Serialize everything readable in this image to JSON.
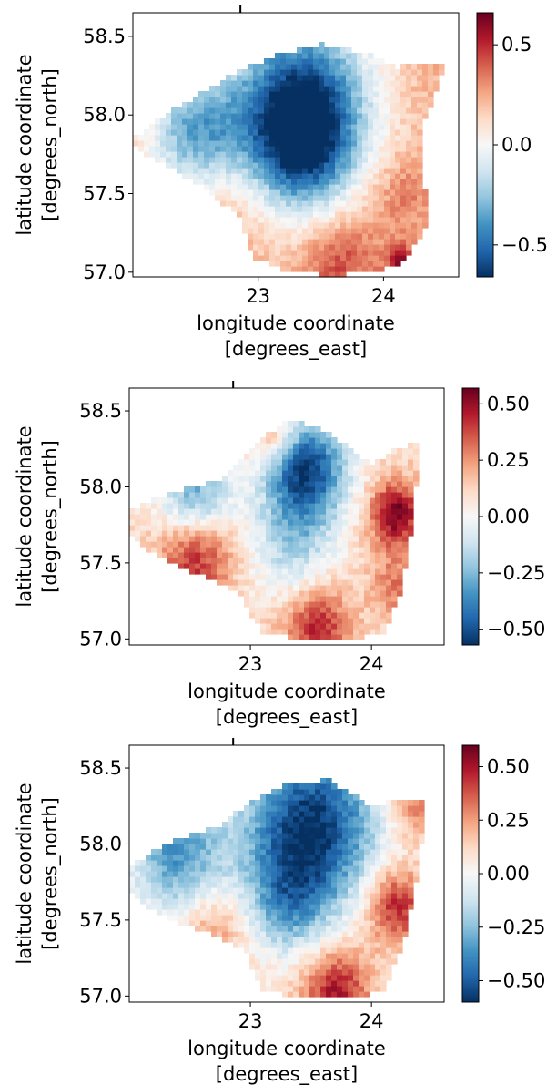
{
  "chart_data": [
    {
      "type": "heatmap",
      "title": "",
      "xlabel": "longitude coordinate\n[degrees_east]",
      "ylabel": "latitude coordinate\n[degrees_north]",
      "xlim": [
        22.0,
        24.6
      ],
      "ylim": [
        56.97,
        58.65
      ],
      "xticks": [
        23,
        24
      ],
      "yticks": [
        57.0,
        57.5,
        58.0,
        58.5
      ],
      "xtick_labels": [
        "23",
        "24"
      ],
      "ytick_labels": [
        "57.0",
        "57.5",
        "58.0",
        "58.5"
      ],
      "colorbar": {
        "cmap": "RdBu_r",
        "range": [
          -0.66,
          0.66
        ],
        "ticks": [
          -0.5,
          0.0,
          0.5
        ],
        "tick_labels": [
          "−0.5",
          "0.0",
          "0.5"
        ]
      },
      "grid": false,
      "outline": [
        [
          22.0,
          57.85
        ],
        [
          22.35,
          58.05
        ],
        [
          22.85,
          58.28
        ],
        [
          23.15,
          58.38
        ],
        [
          23.5,
          58.45
        ],
        [
          23.85,
          58.4
        ],
        [
          24.1,
          58.3
        ],
        [
          24.3,
          58.33
        ],
        [
          24.5,
          58.33
        ],
        [
          24.3,
          57.9
        ],
        [
          24.35,
          57.3
        ],
        [
          24.15,
          57.05
        ],
        [
          23.9,
          57.0
        ],
        [
          23.6,
          56.98
        ],
        [
          23.25,
          57.0
        ],
        [
          22.95,
          57.1
        ],
        [
          22.85,
          57.35
        ],
        [
          22.55,
          57.55
        ],
        [
          22.1,
          57.75
        ],
        [
          22.0,
          57.82
        ]
      ],
      "field": {
        "base": 0.22,
        "hotspots": [
          {
            "lon": 23.35,
            "lat": 58.07,
            "value": -0.62,
            "radius": 0.55
          },
          {
            "lon": 22.5,
            "lat": 57.9,
            "value": -0.3,
            "radius": 0.4
          },
          {
            "lon": 23.35,
            "lat": 57.75,
            "value": -0.2,
            "radius": 0.4
          },
          {
            "lon": 24.15,
            "lat": 57.5,
            "value": 0.35,
            "radius": 0.25
          },
          {
            "lon": 23.65,
            "lat": 57.08,
            "value": 0.45,
            "radius": 0.3
          },
          {
            "lon": 22.8,
            "lat": 57.48,
            "value": 0.3,
            "radius": 0.3
          },
          {
            "lon": 24.3,
            "lat": 58.2,
            "value": 0.25,
            "radius": 0.2
          },
          {
            "lon": 24.15,
            "lat": 57.05,
            "value": 0.6,
            "radius": 0.12
          }
        ]
      }
    },
    {
      "type": "heatmap",
      "title": "",
      "xlabel": "longitude coordinate\n[degrees_east]",
      "ylabel": "latitude coordinate\n[degrees_north]",
      "xlim": [
        22.0,
        24.6
      ],
      "ylim": [
        56.96,
        58.65
      ],
      "xticks": [
        23,
        24
      ],
      "yticks": [
        57.0,
        57.5,
        58.0,
        58.5
      ],
      "xtick_labels": [
        "23",
        "24"
      ],
      "ytick_labels": [
        "57.0",
        "57.5",
        "58.0",
        "58.5"
      ],
      "colorbar": {
        "cmap": "RdBu_r",
        "range": [
          -0.57,
          0.57
        ],
        "ticks": [
          -0.5,
          -0.25,
          0.0,
          0.25,
          0.5
        ],
        "tick_labels": [
          "−0.50",
          "−0.25",
          "0.00",
          "0.25",
          "0.50"
        ]
      },
      "grid": false,
      "outline": [
        [
          22.0,
          57.85
        ],
        [
          22.3,
          57.95
        ],
        [
          22.75,
          58.05
        ],
        [
          23.05,
          58.3
        ],
        [
          23.35,
          58.45
        ],
        [
          23.65,
          58.35
        ],
        [
          24.0,
          58.15
        ],
        [
          24.2,
          58.25
        ],
        [
          24.4,
          58.3
        ],
        [
          24.35,
          57.85
        ],
        [
          24.25,
          57.3
        ],
        [
          24.1,
          57.05
        ],
        [
          23.8,
          56.98
        ],
        [
          23.4,
          57.0
        ],
        [
          23.1,
          57.05
        ],
        [
          22.9,
          57.3
        ],
        [
          22.65,
          57.4
        ],
        [
          22.35,
          57.5
        ],
        [
          22.1,
          57.6
        ],
        [
          22.0,
          57.72
        ]
      ],
      "field": {
        "base": 0.1,
        "hotspots": [
          {
            "lon": 23.45,
            "lat": 58.12,
            "value": -0.55,
            "radius": 0.35
          },
          {
            "lon": 22.55,
            "lat": 57.95,
            "value": -0.3,
            "radius": 0.3
          },
          {
            "lon": 23.35,
            "lat": 57.6,
            "value": -0.15,
            "radius": 0.35
          },
          {
            "lon": 24.2,
            "lat": 57.82,
            "value": 0.55,
            "radius": 0.22
          },
          {
            "lon": 22.55,
            "lat": 57.55,
            "value": 0.45,
            "radius": 0.3
          },
          {
            "lon": 23.55,
            "lat": 57.08,
            "value": 0.45,
            "radius": 0.28
          },
          {
            "lon": 23.2,
            "lat": 58.32,
            "value": 0.35,
            "radius": 0.2
          },
          {
            "lon": 24.2,
            "lat": 57.35,
            "value": 0.3,
            "radius": 0.2
          }
        ]
      }
    },
    {
      "type": "heatmap",
      "title": "",
      "xlabel": "longitude coordinate\n[degrees_east]",
      "ylabel": "latitude coordinate\n[degrees_north]",
      "xlim": [
        22.0,
        24.6
      ],
      "ylim": [
        56.96,
        58.65
      ],
      "xticks": [
        23,
        24
      ],
      "yticks": [
        57.0,
        57.5,
        58.0,
        58.5
      ],
      "xtick_labels": [
        "23",
        "24"
      ],
      "ytick_labels": [
        "57.0",
        "57.5",
        "58.0",
        "58.5"
      ],
      "colorbar": {
        "cmap": "RdBu_r",
        "range": [
          -0.6,
          0.6
        ],
        "ticks": [
          -0.5,
          -0.25,
          0.0,
          0.25,
          0.5
        ],
        "tick_labels": [
          "−0.50",
          "−0.25",
          "0.00",
          "0.25",
          "0.50"
        ]
      },
      "grid": false,
      "outline": [
        [
          22.0,
          57.85
        ],
        [
          22.3,
          58.0
        ],
        [
          22.75,
          58.12
        ],
        [
          23.0,
          58.28
        ],
        [
          23.3,
          58.4
        ],
        [
          23.65,
          58.42
        ],
        [
          24.0,
          58.25
        ],
        [
          24.25,
          58.3
        ],
        [
          24.45,
          58.3
        ],
        [
          24.4,
          57.9
        ],
        [
          24.25,
          57.3
        ],
        [
          24.1,
          57.05
        ],
        [
          23.85,
          56.98
        ],
        [
          23.45,
          56.98
        ],
        [
          23.1,
          57.05
        ],
        [
          22.95,
          57.3
        ],
        [
          22.7,
          57.4
        ],
        [
          22.35,
          57.5
        ],
        [
          22.1,
          57.6
        ],
        [
          22.0,
          57.7
        ]
      ],
      "field": {
        "base": 0.1,
        "hotspots": [
          {
            "lon": 23.5,
            "lat": 58.12,
            "value": -0.6,
            "radius": 0.55
          },
          {
            "lon": 22.4,
            "lat": 57.92,
            "value": -0.35,
            "radius": 0.4
          },
          {
            "lon": 23.3,
            "lat": 57.6,
            "value": -0.2,
            "radius": 0.35
          },
          {
            "lon": 24.2,
            "lat": 57.6,
            "value": 0.5,
            "radius": 0.25
          },
          {
            "lon": 23.7,
            "lat": 57.05,
            "value": 0.5,
            "radius": 0.28
          },
          {
            "lon": 22.7,
            "lat": 57.45,
            "value": 0.3,
            "radius": 0.3
          },
          {
            "lon": 24.35,
            "lat": 58.25,
            "value": 0.35,
            "radius": 0.2
          }
        ]
      }
    }
  ]
}
